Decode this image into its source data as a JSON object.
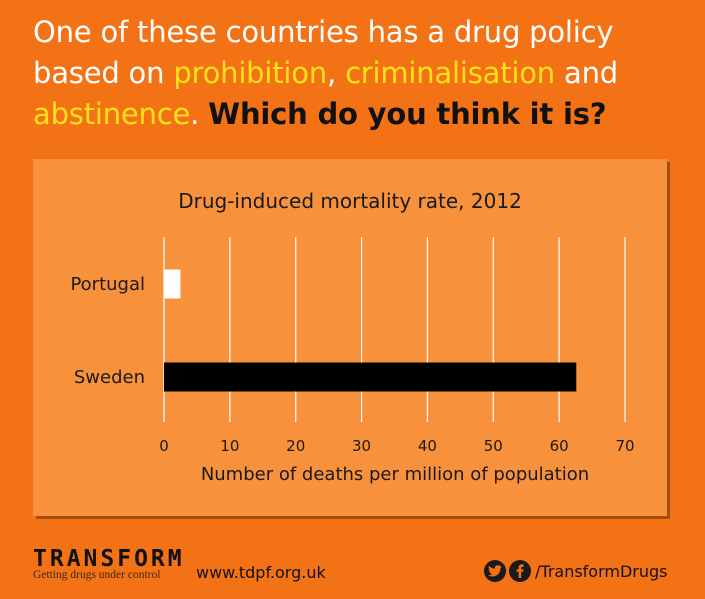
{
  "headline": {
    "part1": "One of these countries has a drug policy based on ",
    "highlight1": "prohibition",
    "comma": ", ",
    "highlight2": "criminalisation",
    "and": " and ",
    "highlight3": "abstinence",
    "period": ". ",
    "question": "Which do you think it is?"
  },
  "chart_data": {
    "type": "bar",
    "orientation": "horizontal",
    "title": "Drug-induced mortality rate, 2012",
    "categories": [
      "Portugal",
      "Sweden"
    ],
    "values": [
      2.5,
      62.6
    ],
    "bar_colors": [
      "#ffffff",
      "#000000"
    ],
    "xlabel": "Number of deaths per million of population",
    "ylabel": "",
    "xlim": [
      0,
      70
    ],
    "xticks": [
      0,
      10,
      20,
      30,
      40,
      50,
      60,
      70
    ],
    "grid": true
  },
  "footer": {
    "logo": "TRANSFORM",
    "tagline": "Getting drugs under control",
    "url": "www.tdpf.org.uk",
    "social_handle": "/TransformDrugs",
    "icons": [
      "twitter-icon",
      "facebook-icon"
    ]
  },
  "colors": {
    "background": "#f47216",
    "panel": "#f7913c",
    "highlight": "#ffe11a"
  }
}
